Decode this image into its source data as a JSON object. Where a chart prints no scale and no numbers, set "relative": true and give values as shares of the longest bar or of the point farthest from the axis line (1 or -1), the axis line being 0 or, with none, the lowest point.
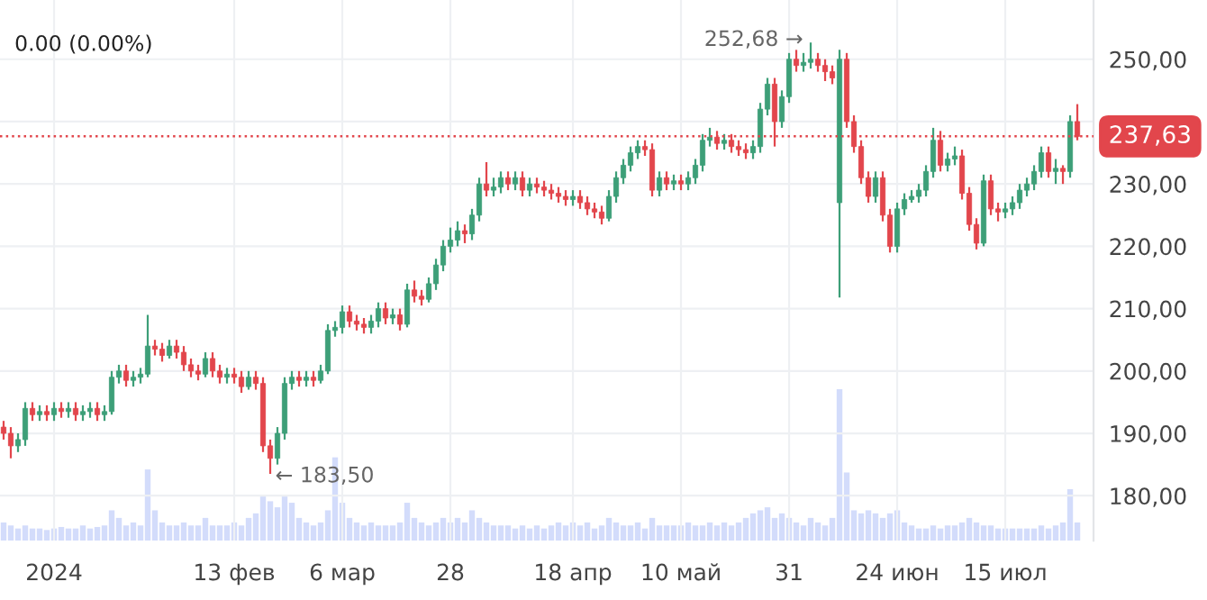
{
  "chart_data": [
    {
      "type": "candlestick",
      "categories": [
        null,
        null,
        null,
        null,
        null,
        null,
        null,
        "2024",
        null,
        null,
        null,
        null,
        null,
        null,
        null,
        null,
        null,
        null,
        null,
        null,
        null,
        null,
        null,
        null,
        null,
        null,
        null,
        null,
        null,
        null,
        null,
        null,
        "13 фев",
        null,
        null,
        null,
        null,
        null,
        null,
        null,
        null,
        null,
        null,
        null,
        null,
        null,
        null,
        "6 мар",
        null,
        null,
        null,
        null,
        null,
        null,
        null,
        null,
        null,
        null,
        null,
        null,
        null,
        null,
        "28",
        null,
        null,
        null,
        null,
        null,
        null,
        null,
        null,
        null,
        null,
        null,
        null,
        null,
        null,
        null,
        null,
        "18 апр",
        null,
        null,
        null,
        null,
        null,
        null,
        null,
        null,
        null,
        null,
        null,
        null,
        null,
        null,
        "10 май",
        null,
        null,
        null,
        null,
        null,
        null,
        null,
        null,
        null,
        null,
        null,
        null,
        null,
        null,
        "31",
        null,
        null,
        null,
        null,
        null,
        null,
        null,
        null,
        null,
        null,
        null,
        null,
        null,
        null,
        "24 июн",
        null,
        null,
        null,
        null,
        null,
        null,
        null,
        null,
        null,
        null,
        null,
        null,
        null,
        null,
        "15 июл",
        null,
        null,
        null,
        null,
        null,
        null,
        null,
        null,
        null,
        null
      ],
      "ohlc": [
        [
          191,
          192,
          189,
          190
        ],
        [
          190,
          191,
          186,
          188
        ],
        [
          188,
          190,
          187,
          189
        ],
        [
          189,
          195,
          188,
          194
        ],
        [
          194,
          195,
          192,
          193
        ],
        [
          193,
          194.5,
          192,
          193.5
        ],
        [
          193.5,
          194.5,
          192,
          193
        ],
        [
          193,
          195,
          192,
          194
        ],
        [
          194,
          195,
          192.5,
          193.5
        ],
        [
          193.5,
          195,
          192.5,
          194
        ],
        [
          194,
          195,
          192,
          193
        ],
        [
          193,
          194.5,
          192,
          193.5
        ],
        [
          193.5,
          195,
          192.5,
          194
        ],
        [
          194,
          195,
          192,
          193
        ],
        [
          193,
          194.5,
          192,
          193.5
        ],
        [
          193.5,
          200,
          193,
          199
        ],
        [
          199,
          201,
          198,
          200
        ],
        [
          200,
          201,
          197.5,
          198.5
        ],
        [
          198.5,
          200,
          197.5,
          199
        ],
        [
          199,
          200.5,
          198,
          199.5
        ],
        [
          199.5,
          209,
          199,
          204
        ],
        [
          204,
          205,
          202.5,
          203.5
        ],
        [
          203.5,
          204.5,
          201.5,
          202.5
        ],
        [
          202.5,
          205,
          202,
          204
        ],
        [
          204,
          205,
          202,
          203
        ],
        [
          203,
          204,
          200,
          201
        ],
        [
          201,
          202,
          199,
          200
        ],
        [
          200,
          201,
          198.5,
          199.5
        ],
        [
          199.5,
          203,
          199,
          202
        ],
        [
          202,
          203,
          199,
          200
        ],
        [
          200,
          201,
          198,
          199
        ],
        [
          199,
          200.5,
          198,
          199.5
        ],
        [
          199.5,
          200.5,
          198,
          199
        ],
        [
          199,
          200,
          196.5,
          197.5
        ],
        [
          197.5,
          200,
          197,
          199
        ],
        [
          199,
          200,
          197,
          198
        ],
        [
          198,
          199,
          187,
          188
        ],
        [
          188,
          189,
          183.5,
          186
        ],
        [
          186,
          191,
          185,
          190
        ],
        [
          190,
          199,
          189,
          198
        ],
        [
          198,
          200,
          197,
          199
        ],
        [
          199,
          200,
          197.5,
          198.5
        ],
        [
          198.5,
          200,
          197.5,
          199
        ],
        [
          199,
          200,
          197.5,
          198.5
        ],
        [
          198.5,
          201,
          198,
          200
        ],
        [
          200,
          207.5,
          199.5,
          206.5
        ],
        [
          206.5,
          208,
          205.5,
          207
        ],
        [
          207,
          210.5,
          206,
          209.5
        ],
        [
          209.5,
          210.5,
          207,
          208
        ],
        [
          208,
          209,
          206.5,
          207.5
        ],
        [
          207.5,
          208.5,
          206,
          207
        ],
        [
          207,
          209,
          206,
          208
        ],
        [
          208,
          211,
          207,
          210
        ],
        [
          210,
          211,
          207.5,
          208.5
        ],
        [
          208.5,
          210,
          207.5,
          209
        ],
        [
          209,
          210,
          206.5,
          207.5
        ],
        [
          207.5,
          214,
          207,
          213
        ],
        [
          213,
          214.5,
          211,
          212
        ],
        [
          212,
          213,
          210.5,
          211.5
        ],
        [
          211.5,
          215,
          211,
          214
        ],
        [
          214,
          218,
          213,
          217
        ],
        [
          217,
          221,
          216,
          220
        ],
        [
          220,
          223,
          219,
          221
        ],
        [
          221,
          224,
          220,
          222.5
        ],
        [
          222.5,
          223.5,
          220.5,
          222
        ],
        [
          222,
          226,
          221,
          225
        ],
        [
          225,
          231,
          224,
          230
        ],
        [
          230,
          233.5,
          228,
          229
        ],
        [
          229,
          231,
          228,
          229.5
        ],
        [
          229.5,
          232,
          228.5,
          231
        ],
        [
          231,
          232,
          229,
          230
        ],
        [
          230,
          232,
          229,
          231
        ],
        [
          231,
          232,
          228,
          229
        ],
        [
          229,
          231,
          228,
          230
        ],
        [
          230,
          231,
          228.5,
          229.5
        ],
        [
          229.5,
          230.5,
          228,
          229
        ],
        [
          229,
          230,
          227.5,
          228.5
        ],
        [
          228.5,
          229.5,
          227,
          228
        ],
        [
          228,
          229,
          226.5,
          227.5
        ],
        [
          227.5,
          229,
          226.5,
          228
        ],
        [
          228,
          229,
          226,
          227
        ],
        [
          227,
          228,
          225,
          226
        ],
        [
          226,
          227,
          224.5,
          225.5
        ],
        [
          225.5,
          226.5,
          223.5,
          224.5
        ],
        [
          224.5,
          229,
          224,
          228
        ],
        [
          228,
          232,
          227,
          231
        ],
        [
          231,
          234,
          230,
          233
        ],
        [
          233,
          236,
          232,
          235
        ],
        [
          235,
          237,
          234,
          236
        ],
        [
          236,
          237,
          234.5,
          235.5
        ],
        [
          235.5,
          236.5,
          228,
          229
        ],
        [
          229,
          232,
          228,
          231
        ],
        [
          231,
          232,
          229,
          230
        ],
        [
          230,
          231.5,
          229,
          230.5
        ],
        [
          230.5,
          231.5,
          229,
          230
        ],
        [
          230,
          232,
          229,
          231
        ],
        [
          231,
          234,
          230,
          233
        ],
        [
          233,
          238,
          232,
          237
        ],
        [
          237,
          239,
          236,
          237.5
        ],
        [
          237.5,
          238.5,
          235.5,
          236.5
        ],
        [
          236.5,
          238,
          235.5,
          237
        ],
        [
          237,
          238,
          235,
          236
        ],
        [
          236,
          237,
          234.5,
          235.5
        ],
        [
          235.5,
          236.5,
          234,
          235
        ],
        [
          235,
          237,
          234,
          236
        ],
        [
          236,
          243,
          235,
          242
        ],
        [
          242,
          247,
          241,
          246
        ],
        [
          246,
          247,
          236,
          240
        ],
        [
          240,
          245,
          239,
          244
        ],
        [
          244,
          251,
          243,
          250
        ],
        [
          250,
          251.5,
          248,
          249
        ],
        [
          249,
          251,
          248,
          249.5
        ],
        [
          249.5,
          252.68,
          248.5,
          250
        ],
        [
          250,
          251,
          248,
          249
        ],
        [
          249,
          250,
          246.5,
          248
        ],
        [
          248,
          249,
          246,
          247
        ],
        [
          227,
          251.5,
          211.8,
          250
        ],
        [
          250,
          251,
          239,
          240
        ],
        [
          240,
          241,
          235,
          236
        ],
        [
          236,
          237,
          230,
          231
        ],
        [
          231,
          232,
          227,
          228
        ],
        [
          228,
          232,
          227,
          231
        ],
        [
          231,
          232,
          224,
          225
        ],
        [
          225,
          226,
          219,
          220
        ],
        [
          220,
          227,
          219,
          226
        ],
        [
          226,
          228.5,
          225,
          227.5
        ],
        [
          227.5,
          229,
          227,
          228
        ],
        [
          228,
          230,
          227,
          229
        ],
        [
          229,
          233,
          228,
          232
        ],
        [
          232,
          239,
          231,
          237
        ],
        [
          237,
          238.5,
          232,
          233
        ],
        [
          233,
          235,
          232,
          234
        ],
        [
          234,
          236,
          233,
          234.5
        ],
        [
          234.5,
          235.5,
          227.5,
          228.5
        ],
        [
          228.5,
          229.5,
          222.5,
          223.5
        ],
        [
          223.5,
          224.5,
          219.5,
          220.5
        ],
        [
          220.5,
          231.5,
          220,
          230.5
        ],
        [
          230.5,
          231.5,
          225,
          226
        ],
        [
          226,
          227,
          224,
          225.5
        ],
        [
          225.5,
          227,
          224.5,
          226
        ],
        [
          226,
          228,
          225,
          227
        ],
        [
          227,
          230,
          226,
          229
        ],
        [
          229,
          231,
          228,
          230
        ],
        [
          230,
          233,
          229,
          232
        ],
        [
          232,
          236,
          231,
          235
        ],
        [
          235,
          236,
          231,
          232
        ],
        [
          232,
          234,
          230,
          232.5
        ],
        [
          232.5,
          233,
          230,
          232
        ],
        [
          232,
          241,
          231,
          240
        ],
        [
          240,
          242.8,
          237,
          237.63
        ]
      ],
      "colors": [
        "#e2464c",
        "#e2464c",
        "#3d9f78",
        "#3d9f78",
        "#e2464c",
        "#3d9f78",
        "#e2464c",
        "#3d9f78",
        "#e2464c",
        "#3d9f78",
        "#e2464c",
        "#3d9f78",
        "#3d9f78",
        "#e2464c",
        "#3d9f78",
        "#3d9f78",
        "#3d9f78",
        "#e2464c",
        "#3d9f78",
        "#3d9f78",
        "#3d9f78",
        "#e2464c",
        "#e2464c",
        "#3d9f78",
        "#e2464c",
        "#e2464c",
        "#e2464c",
        "#e2464c",
        "#3d9f78",
        "#e2464c",
        "#e2464c",
        "#3d9f78",
        "#e2464c",
        "#e2464c",
        "#3d9f78",
        "#e2464c",
        "#e2464c",
        "#e2464c",
        "#3d9f78",
        "#3d9f78",
        "#3d9f78",
        "#e2464c",
        "#3d9f78",
        "#e2464c",
        "#3d9f78",
        "#3d9f78",
        "#3d9f78",
        "#3d9f78",
        "#e2464c",
        "#e2464c",
        "#e2464c",
        "#3d9f78",
        "#3d9f78",
        "#e2464c",
        "#3d9f78",
        "#e2464c",
        "#3d9f78",
        "#e2464c",
        "#e2464c",
        "#3d9f78",
        "#3d9f78",
        "#3d9f78",
        "#3d9f78",
        "#3d9f78",
        "#e2464c",
        "#3d9f78",
        "#3d9f78",
        "#e2464c",
        "#3d9f78",
        "#3d9f78",
        "#e2464c",
        "#3d9f78",
        "#e2464c",
        "#3d9f78",
        "#e2464c",
        "#e2464c",
        "#e2464c",
        "#e2464c",
        "#e2464c",
        "#3d9f78",
        "#e2464c",
        "#e2464c",
        "#e2464c",
        "#e2464c",
        "#3d9f78",
        "#3d9f78",
        "#3d9f78",
        "#3d9f78",
        "#3d9f78",
        "#e2464c",
        "#e2464c",
        "#3d9f78",
        "#e2464c",
        "#3d9f78",
        "#e2464c",
        "#3d9f78",
        "#3d9f78",
        "#3d9f78",
        "#3d9f78",
        "#e2464c",
        "#3d9f78",
        "#e2464c",
        "#e2464c",
        "#e2464c",
        "#3d9f78",
        "#3d9f78",
        "#3d9f78",
        "#e2464c",
        "#3d9f78",
        "#3d9f78",
        "#e2464c",
        "#3d9f78",
        "#3d9f78",
        "#e2464c",
        "#e2464c",
        "#e2464c",
        "#3d9f78",
        "#e2464c",
        "#e2464c",
        "#e2464c",
        "#e2464c",
        "#3d9f78",
        "#e2464c",
        "#e2464c",
        "#3d9f78",
        "#3d9f78",
        "#3d9f78",
        "#3d9f78",
        "#3d9f78",
        "#3d9f78",
        "#e2464c",
        "#3d9f78",
        "#3d9f78",
        "#e2464c",
        "#e2464c",
        "#e2464c",
        "#3d9f78",
        "#e2464c",
        "#e2464c",
        "#3d9f78",
        "#3d9f78",
        "#3d9f78",
        "#3d9f78",
        "#3d9f78",
        "#3d9f78",
        "#e2464c",
        "#3d9f78",
        "#e2464c",
        "#3d9f78",
        "#e2464c"
      ],
      "ylim": [
        172.8,
        259.5
      ],
      "yticks": [
        {
          "value": 180,
          "label": "180,00"
        },
        {
          "value": 190,
          "label": "190,00"
        },
        {
          "value": 200,
          "label": "200,00"
        },
        {
          "value": 210,
          "label": "210,00"
        },
        {
          "value": 220,
          "label": "220,00"
        },
        {
          "value": 230,
          "label": "230,00"
        },
        {
          "value": 240,
          "label": null
        },
        {
          "value": 250,
          "label": "250,00"
        }
      ],
      "ref_lines": [
        {
          "axis": "y",
          "value": 237.63,
          "label": "237,63",
          "color": "#e2464c",
          "line_style": "dotted"
        }
      ],
      "annotations": [
        "0.00 (0.00%)",
        "252,68 →",
        "← 183,50"
      ],
      "grid": true
    },
    {
      "type": "bar",
      "relative": true,
      "categories": [
        null,
        null,
        null,
        null,
        null,
        null,
        null,
        null,
        null,
        null,
        null,
        null,
        null,
        null,
        null,
        null,
        null,
        null,
        null,
        null,
        null,
        null,
        null,
        null,
        null,
        null,
        null,
        null,
        null,
        null,
        null,
        null,
        null,
        null,
        null,
        null,
        null,
        null,
        null,
        null,
        null,
        null,
        null,
        null,
        null,
        null,
        null,
        null,
        null,
        null,
        null,
        null,
        null,
        null,
        null,
        null,
        null,
        null,
        null,
        null,
        null,
        null,
        null,
        null,
        null,
        null,
        null,
        null,
        null,
        null,
        null,
        null,
        null,
        null,
        null,
        null,
        null,
        null,
        null,
        null,
        null,
        null,
        null,
        null,
        null,
        null,
        null,
        null,
        null,
        null,
        null,
        null,
        null,
        null,
        null,
        null,
        null,
        null,
        null,
        null,
        null,
        null,
        null,
        null,
        null,
        null,
        null,
        null,
        null,
        null,
        null,
        null,
        null,
        null,
        null,
        null,
        null,
        null,
        null,
        null,
        null,
        null,
        null,
        null,
        null,
        null,
        null,
        null,
        null,
        null,
        null,
        null,
        null,
        null,
        null,
        null,
        null,
        null,
        null,
        null,
        null,
        null,
        null,
        null,
        null,
        null,
        null,
        null,
        null,
        null
      ],
      "color": "#d3dcfb",
      "values": [
        0.12,
        0.1,
        0.08,
        0.1,
        0.08,
        0.08,
        0.07,
        0.08,
        0.09,
        0.08,
        0.08,
        0.1,
        0.08,
        0.09,
        0.1,
        0.2,
        0.15,
        0.1,
        0.12,
        0.1,
        0.47,
        0.2,
        0.12,
        0.1,
        0.1,
        0.12,
        0.1,
        0.1,
        0.15,
        0.1,
        0.1,
        0.1,
        0.12,
        0.1,
        0.15,
        0.18,
        0.3,
        0.26,
        0.22,
        0.3,
        0.25,
        0.15,
        0.12,
        0.1,
        0.12,
        0.2,
        0.55,
        0.25,
        0.15,
        0.12,
        0.1,
        0.12,
        0.1,
        0.1,
        0.1,
        0.12,
        0.25,
        0.15,
        0.12,
        0.1,
        0.12,
        0.15,
        0.12,
        0.15,
        0.12,
        0.2,
        0.15,
        0.12,
        0.1,
        0.1,
        0.1,
        0.08,
        0.1,
        0.08,
        0.1,
        0.08,
        0.1,
        0.12,
        0.1,
        0.12,
        0.1,
        0.12,
        0.08,
        0.1,
        0.15,
        0.12,
        0.1,
        0.1,
        0.12,
        0.08,
        0.15,
        0.1,
        0.1,
        0.1,
        0.1,
        0.12,
        0.1,
        0.1,
        0.12,
        0.1,
        0.12,
        0.1,
        0.12,
        0.15,
        0.18,
        0.2,
        0.22,
        0.15,
        0.18,
        0.15,
        0.12,
        0.1,
        0.15,
        0.12,
        0.1,
        0.15,
        1,
        0.45,
        0.2,
        0.18,
        0.2,
        0.18,
        0.15,
        0.18,
        0.2,
        0.12,
        0.1,
        0.08,
        0.08,
        0.1,
        0.08,
        0.1,
        0.1,
        0.12,
        0.15,
        0.12,
        0.1,
        0.1,
        0.08,
        0.08,
        0.08,
        0.08,
        0.08,
        0.08,
        0.1,
        0.08,
        0.1,
        0.12,
        0.34,
        0.12
      ]
    }
  ]
}
